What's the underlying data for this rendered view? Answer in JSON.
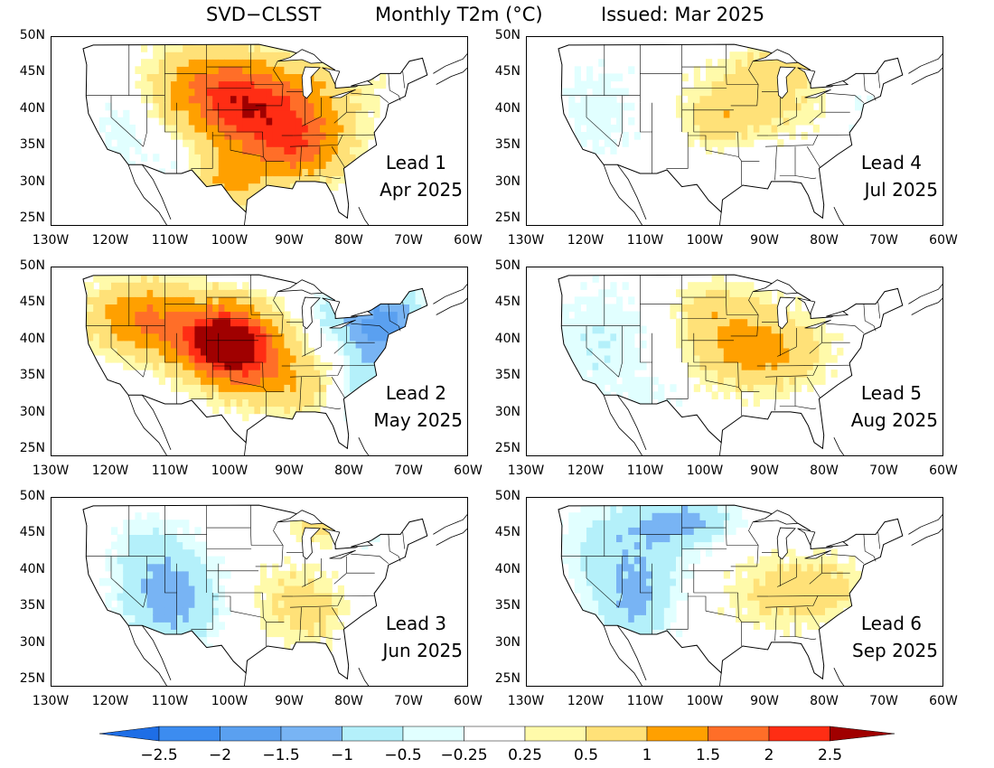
{
  "header": {
    "model": "SVD−CLSST",
    "variable": "Monthly T2m (°C)",
    "issued": "Issued: Mar 2025"
  },
  "lat_labels": [
    "50N",
    "45N",
    "40N",
    "35N",
    "30N",
    "25N"
  ],
  "lon_labels": [
    "130W",
    "120W",
    "110W",
    "100W",
    "90W",
    "80W",
    "70W",
    "60W"
  ],
  "panels": [
    {
      "lead": "Lead 1",
      "month": "Apr 2025"
    },
    {
      "lead": "Lead 4",
      "month": "Jul 2025"
    },
    {
      "lead": "Lead 2",
      "month": "May 2025"
    },
    {
      "lead": "Lead 5",
      "month": "Aug 2025"
    },
    {
      "lead": "Lead 3",
      "month": "Jun 2025"
    },
    {
      "lead": "Lead 6",
      "month": "Sep 2025"
    }
  ],
  "colorbar": {
    "labels": [
      "−2.5",
      "−2",
      "−1.5",
      "−1",
      "−0.5",
      "−0.25",
      "0.25",
      "0.5",
      "1",
      "1.5",
      "2",
      "2.5"
    ],
    "colors": [
      "#1e6ee6",
      "#3c8cf0",
      "#5aa0f0",
      "#78b4f4",
      "#b4f0fa",
      "#e1ffff",
      "#ffffff",
      "#fffaaa",
      "#ffe178",
      "#ffa000",
      "#ff6e28",
      "#ff2d14",
      "#a00000"
    ]
  },
  "anomaly_fields": [
    {
      "warm": [
        [
          -97,
          40,
          10,
          6,
          2
        ],
        [
          -88,
          35,
          8,
          5,
          1.5
        ],
        [
          -105,
          44,
          10,
          5,
          1
        ],
        [
          -85,
          43,
          10,
          5,
          0.6
        ],
        [
          -100,
          30,
          6,
          4,
          1
        ]
      ],
      "cool": [
        [
          -118,
          38,
          5,
          7,
          0.4
        ],
        [
          -110,
          33,
          4,
          3,
          0.3
        ]
      ]
    },
    {
      "warm": [
        [
          -92,
          41,
          12,
          5,
          0.7
        ],
        [
          -88,
          46,
          8,
          3,
          0.6
        ],
        [
          -98,
          38,
          5,
          3,
          0.5
        ]
      ],
      "cool": [
        [
          -118,
          40,
          8,
          8,
          0.4
        ],
        [
          -74,
          40,
          4,
          4,
          0.4
        ]
      ]
    },
    {
      "warm": [
        [
          -101,
          40,
          8,
          5,
          3
        ],
        [
          -115,
          43,
          9,
          5,
          1.5
        ],
        [
          -95,
          36,
          8,
          5,
          1
        ],
        [
          -88,
          33,
          6,
          4,
          0.5
        ]
      ],
      "cool": [
        [
          -74,
          42,
          6,
          5,
          1.8
        ],
        [
          -78,
          33,
          4,
          6,
          0.7
        ],
        [
          -82,
          44,
          5,
          4,
          0.6
        ]
      ]
    },
    {
      "warm": [
        [
          -95,
          40,
          10,
          6,
          1
        ],
        [
          -87,
          38,
          8,
          5,
          0.6
        ],
        [
          -100,
          45,
          5,
          3,
          0.4
        ]
      ],
      "cool": [
        [
          -117,
          40,
          10,
          8,
          0.5
        ],
        [
          -108,
          32,
          5,
          3,
          0.3
        ]
      ]
    },
    {
      "warm": [
        [
          -90,
          36,
          8,
          6,
          0.5
        ],
        [
          -85,
          46,
          4,
          2,
          0.8
        ],
        [
          -86,
          34,
          5,
          4,
          0.4
        ]
      ],
      "cool": [
        [
          -110,
          36,
          8,
          6,
          1.3
        ],
        [
          -113,
          43,
          7,
          5,
          0.5
        ],
        [
          -77,
          45,
          4,
          4,
          0.3
        ]
      ]
    },
    {
      "warm": [
        [
          -88,
          37,
          10,
          5,
          0.6
        ],
        [
          -80,
          38,
          6,
          4,
          0.5
        ]
      ],
      "cool": [
        [
          -113,
          43,
          10,
          7,
          0.9
        ],
        [
          -112,
          35,
          6,
          5,
          0.9
        ],
        [
          -103,
          47,
          8,
          3,
          1
        ]
      ]
    }
  ]
}
